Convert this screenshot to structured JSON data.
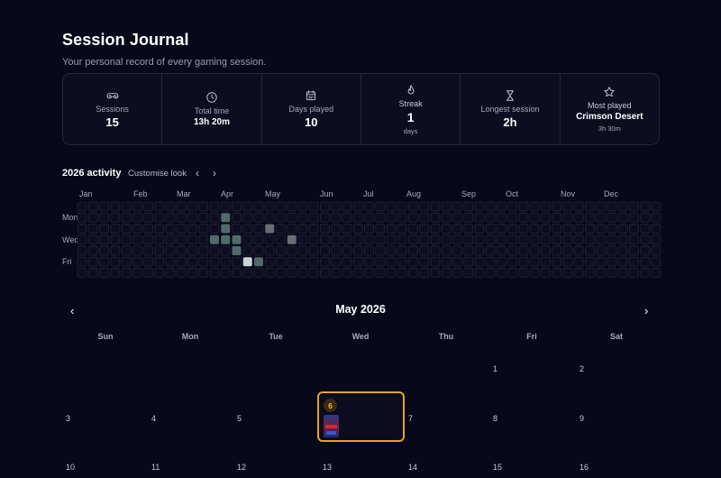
{
  "page": {
    "title": "Session Journal",
    "subtitle": "Your personal record of every gaming session."
  },
  "stats": [
    {
      "icon": "gamepad-icon",
      "label": "Sessions",
      "value": "15",
      "sub": ""
    },
    {
      "icon": "clock-icon",
      "label": "Total time",
      "value": "13h 20m",
      "sub": ""
    },
    {
      "icon": "calendar-icon",
      "label": "Days played",
      "value": "10",
      "sub": ""
    },
    {
      "icon": "flame-icon",
      "label": "Streak",
      "value": "1",
      "sub": "days"
    },
    {
      "icon": "hourglass-icon",
      "label": "Longest session",
      "value": "2h",
      "sub": ""
    },
    {
      "icon": "star-icon",
      "label": "Most played",
      "value": "Crimson Desert",
      "sub": "3h 30m"
    }
  ],
  "activity": {
    "title": "2026 activity",
    "customise_label": "Customise look",
    "prev_label": "‹",
    "next_label": "›",
    "months": [
      "Jan",
      "Feb",
      "Mar",
      "Apr",
      "May",
      "Jun",
      "Jul",
      "Aug",
      "Sep",
      "Oct",
      "Nov",
      "Dec"
    ],
    "day_labels": [
      "Mon",
      "Wed",
      "Fri"
    ],
    "active_cells": [
      {
        "week": 13,
        "day": 1,
        "level": "medium"
      },
      {
        "week": 13,
        "day": 2,
        "level": "medium"
      },
      {
        "week": 12,
        "day": 3,
        "level": "medium"
      },
      {
        "week": 13,
        "day": 3,
        "level": "medium"
      },
      {
        "week": 14,
        "day": 3,
        "level": "medium"
      },
      {
        "week": 14,
        "day": 4,
        "level": "medium"
      },
      {
        "week": 15,
        "day": 5,
        "level": "high"
      },
      {
        "week": 16,
        "day": 5,
        "level": "medium"
      },
      {
        "week": 17,
        "day": 2,
        "level": "gray"
      },
      {
        "week": 19,
        "day": 3,
        "level": "gray"
      }
    ],
    "colors": {
      "empty": "#0d0e22",
      "empty_border": "#1e2033",
      "medium": "#4f6b6a",
      "high": "#c6d6d2",
      "gray": "#6a6c77"
    }
  },
  "calendar": {
    "title": "May 2026",
    "prev_label": "‹",
    "next_label": "›",
    "weekdays": [
      "Sun",
      "Mon",
      "Tue",
      "Wed",
      "Thu",
      "Fri",
      "Sat"
    ],
    "days": [
      "1",
      "2",
      "3",
      "4",
      "5",
      "6",
      "7",
      "8",
      "9",
      "10",
      "11",
      "12",
      "13",
      "14",
      "15",
      "16"
    ],
    "highlight": {
      "day": "6",
      "sessions": "",
      "color": "#e5a51b"
    }
  }
}
